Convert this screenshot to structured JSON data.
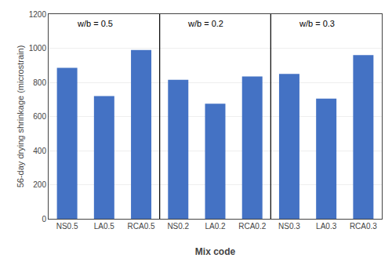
{
  "chart_data": {
    "type": "bar",
    "categories": [
      "NS0.5",
      "LA0.5",
      "RCA0.5",
      "NS0.2",
      "LA0.2",
      "RCA0.2",
      "NS0.3",
      "LA0.3",
      "RCA0.3"
    ],
    "values": [
      885,
      720,
      990,
      815,
      675,
      835,
      850,
      705,
      960
    ],
    "color": "#4472C4",
    "xlabel": "Mix code",
    "ylabel": "56-day drying shrinkage (microstrain)",
    "ylim": [
      0,
      1200
    ],
    "yticks": [
      0,
      200,
      400,
      600,
      800,
      1000,
      1200
    ],
    "grid": true,
    "annotations": [
      {
        "text": "w/b = 0.5",
        "x": "NS0.5"
      },
      {
        "text": "w/b = 0.2",
        "x": "NS0.2"
      },
      {
        "text": "w/b = 0.3",
        "x": "NS0.3"
      }
    ]
  }
}
